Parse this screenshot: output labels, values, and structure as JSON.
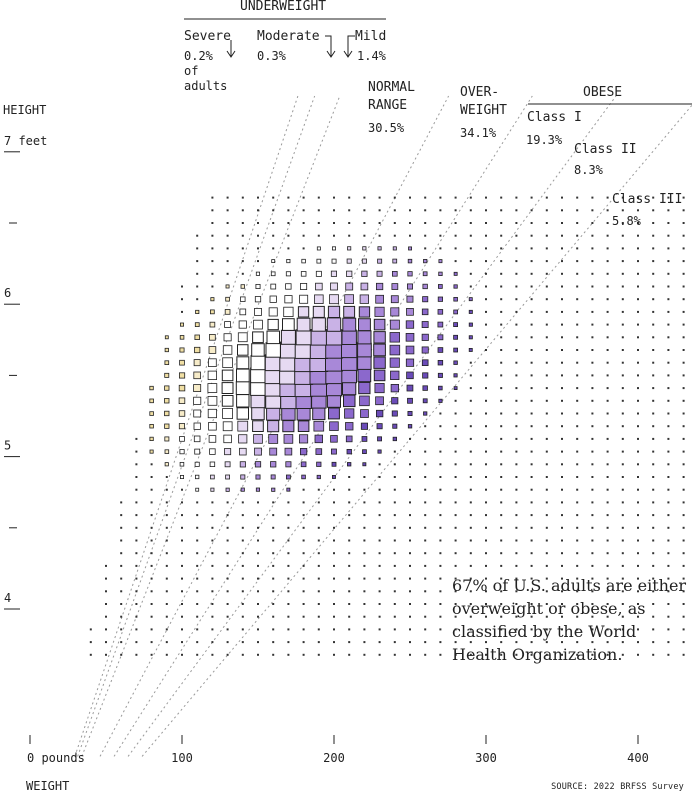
{
  "header": {
    "underweight": "UNDERWEIGHT",
    "obese": "OBESE"
  },
  "categories": {
    "severe": {
      "label": "Severe",
      "pct": "0.2%",
      "sub1": "of",
      "sub2": "adults"
    },
    "moderate": {
      "label": "Moderate",
      "pct": "0.3%"
    },
    "mild": {
      "label": "Mild",
      "pct": "1.4%"
    },
    "normal": {
      "line1": "NORMAL",
      "line2": "RANGE",
      "pct": "30.5%"
    },
    "overweight": {
      "line1": "OVER-",
      "line2": "WEIGHT",
      "pct": "34.1%"
    },
    "class1": {
      "label": "Class I",
      "pct": "19.3%"
    },
    "class2": {
      "label": "Class II",
      "pct": "8.3%"
    },
    "class3": {
      "label": "Class III",
      "pct": "5.8%"
    }
  },
  "annotation": "67% of U.S. adults are either overweight or obese, as classified by the World Health Organization.",
  "source": "SOURCE: 2022 BRFSS Survey",
  "colors": {
    "severe": "#f0dfa4",
    "moderate": "#f7ecc9",
    "normal": "#ffffff",
    "overweight_light": "#e6daf2",
    "overweight_mid": "#c9b2e6",
    "obese1": "#a888d8",
    "obese2": "#8b68cc",
    "obese3": "#6a4bb8",
    "stroke": "#222222"
  },
  "chart_data": {
    "type": "scatter",
    "xlabel": "WEIGHT",
    "ylabel": "HEIGHT",
    "x_axis": {
      "range": [
        0,
        440
      ],
      "ticks": [
        0,
        100,
        200,
        300,
        400
      ],
      "tick_labels": [
        "0 pounds",
        "100",
        "200",
        "300",
        "400"
      ]
    },
    "y_axis": {
      "range_inches": [
        36,
        88
      ],
      "ticks": [
        48,
        54,
        60,
        66,
        72,
        78,
        84
      ],
      "tick_labels": [
        "4",
        "",
        "5",
        "",
        "6",
        "",
        "7 feet"
      ]
    },
    "bmi_thresholds": [
      16,
      17,
      18.5,
      25,
      30,
      35,
      40
    ],
    "distribution": {
      "weight_mean_lb": 182,
      "weight_sd_lb": 45,
      "height_mean_in": 66.5,
      "height_sd_in": 4.0,
      "grid_weight_step_lb": 10,
      "grid_height_step_in": 1.0
    },
    "shares": [
      {
        "category": "Severe underweight",
        "percent": 0.2
      },
      {
        "category": "Moderate underweight",
        "percent": 0.3
      },
      {
        "category": "Mild underweight",
        "percent": 1.4
      },
      {
        "category": "Normal range",
        "percent": 30.5
      },
      {
        "category": "Overweight",
        "percent": 34.1
      },
      {
        "category": "Obese Class I",
        "percent": 19.3
      },
      {
        "category": "Obese Class II",
        "percent": 8.3
      },
      {
        "category": "Obese Class III",
        "percent": 5.8
      }
    ]
  }
}
